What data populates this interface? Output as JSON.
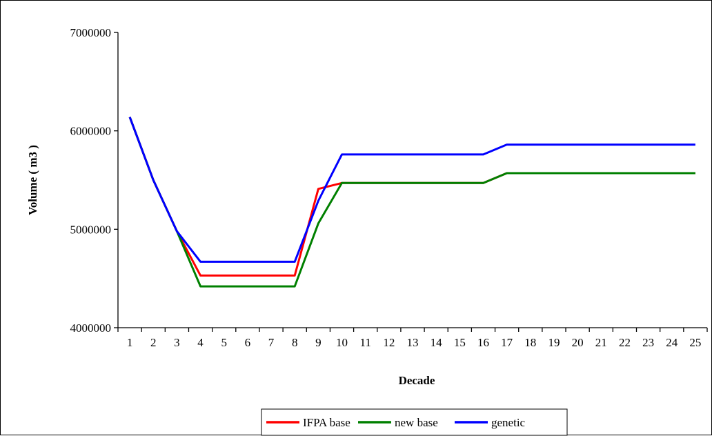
{
  "chart_data": {
    "type": "line",
    "title": "",
    "xlabel": "Decade",
    "ylabel": "Volume ( m3 )",
    "x": [
      1,
      2,
      3,
      4,
      5,
      6,
      7,
      8,
      9,
      10,
      11,
      12,
      13,
      14,
      15,
      16,
      17,
      18,
      19,
      20,
      21,
      22,
      23,
      24,
      25
    ],
    "ylim": [
      4000000,
      7000000
    ],
    "yticks": [
      4000000,
      5000000,
      6000000,
      7000000
    ],
    "grid": false,
    "legend_position": "bottom",
    "series": [
      {
        "name": "IFPA base",
        "color": "#ff0000",
        "values": [
          6140000,
          5500000,
          4980000,
          4530000,
          4530000,
          4530000,
          4530000,
          4530000,
          5410000,
          5470000,
          5470000,
          5470000,
          5470000,
          5470000,
          5470000,
          5470000,
          5570000,
          5570000,
          5570000,
          5570000,
          5570000,
          5570000,
          5570000,
          5570000,
          5570000
        ]
      },
      {
        "name": "new base",
        "color": "#008000",
        "values": [
          6140000,
          5500000,
          4980000,
          4420000,
          4420000,
          4420000,
          4420000,
          4420000,
          5060000,
          5470000,
          5470000,
          5470000,
          5470000,
          5470000,
          5470000,
          5470000,
          5570000,
          5570000,
          5570000,
          5570000,
          5570000,
          5570000,
          5570000,
          5570000,
          5570000
        ]
      },
      {
        "name": "genetic",
        "color": "#0000ff",
        "values": [
          6140000,
          5500000,
          4980000,
          4670000,
          4670000,
          4670000,
          4670000,
          4670000,
          5290000,
          5760000,
          5760000,
          5760000,
          5760000,
          5760000,
          5760000,
          5760000,
          5860000,
          5860000,
          5860000,
          5860000,
          5860000,
          5860000,
          5860000,
          5860000,
          5860000
        ]
      }
    ]
  }
}
